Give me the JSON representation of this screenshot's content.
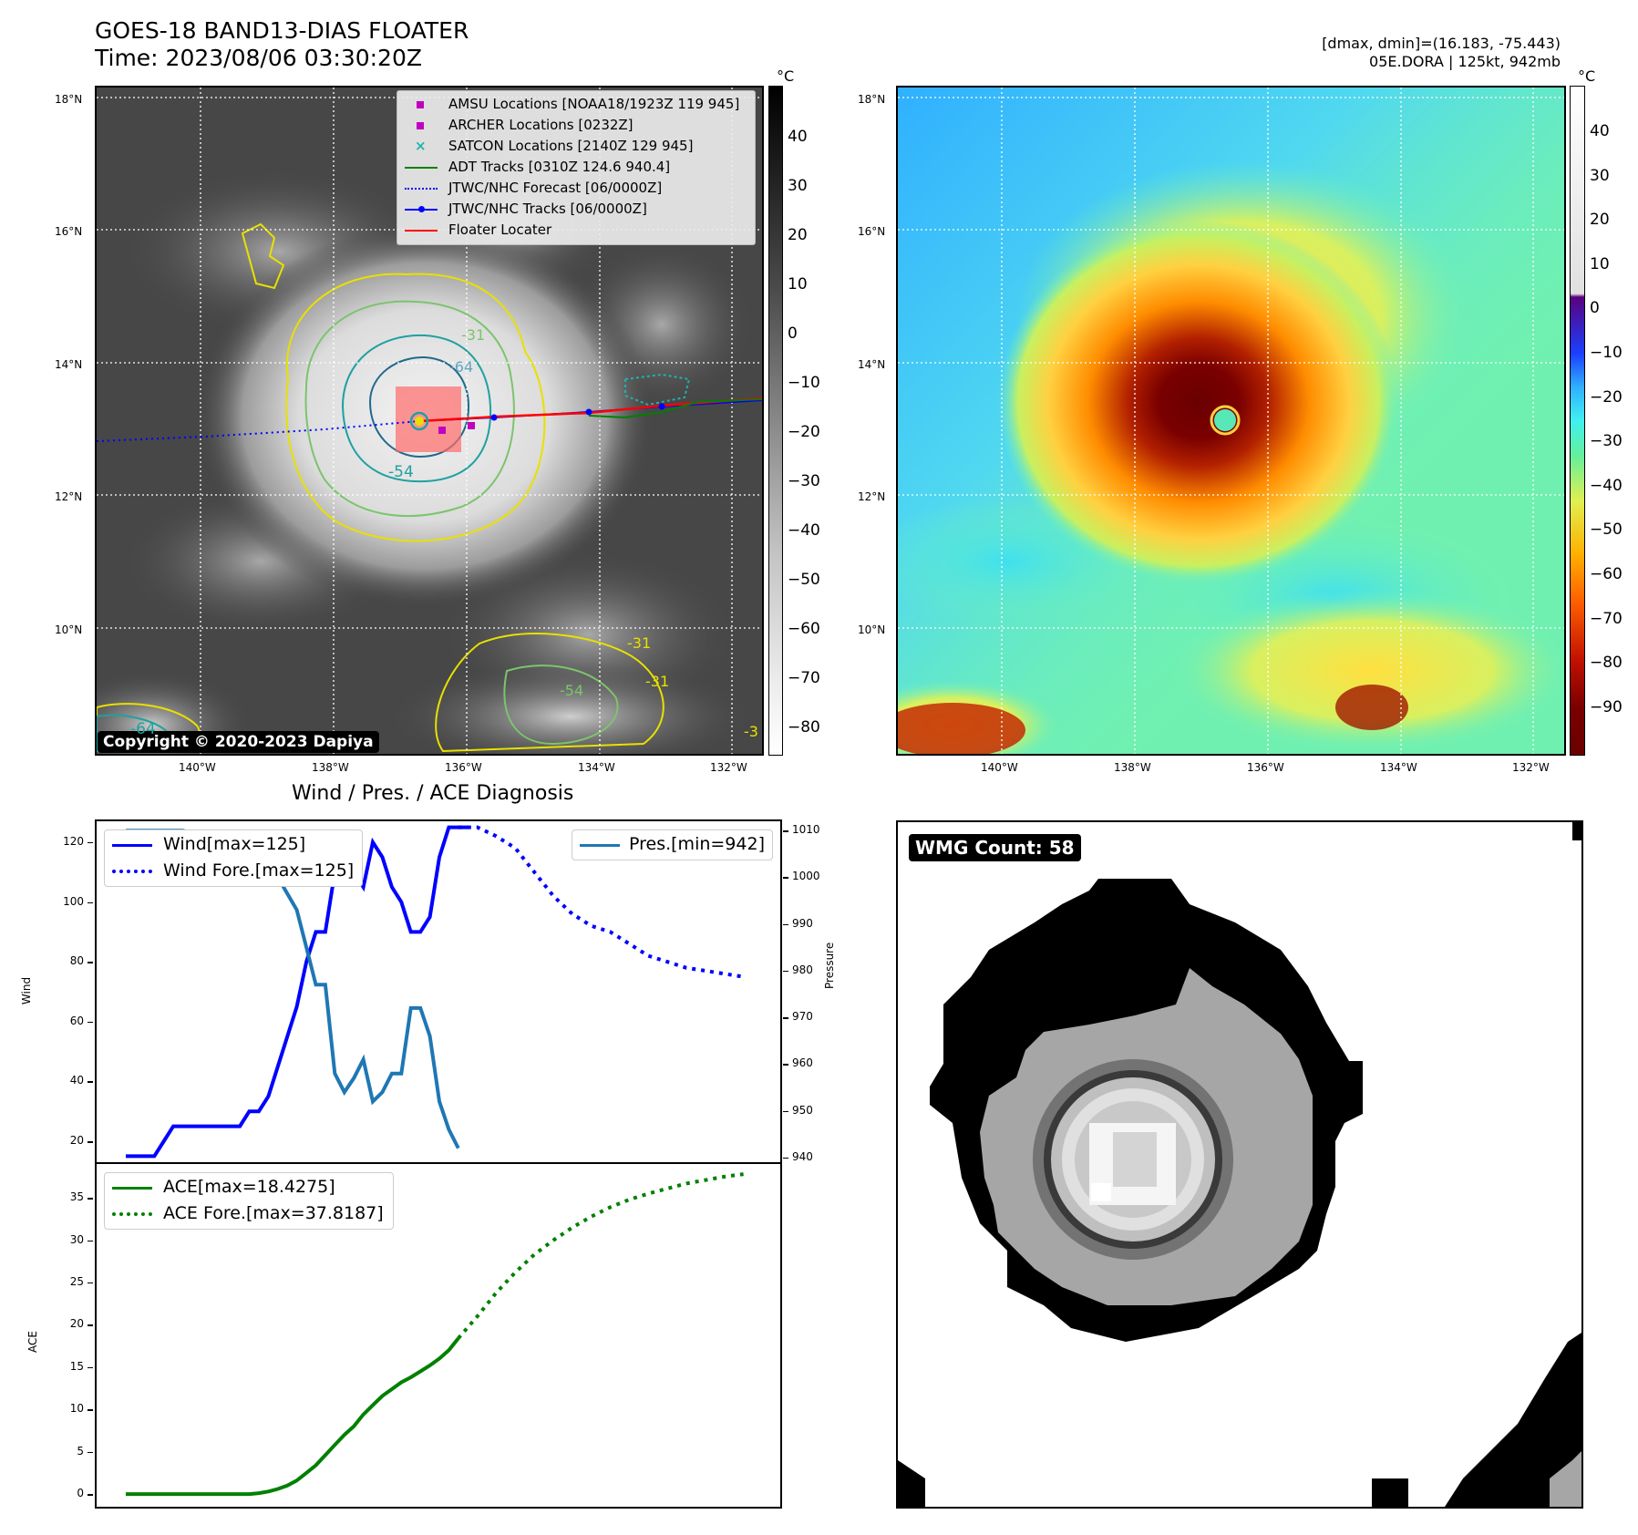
{
  "header": {
    "title_line1": "GOES-18 BAND13-DIAS FLOATER",
    "title_line2": "Time: 2023/08/06 03:30:20Z",
    "right_line1": "[dmax, dmin]=(16.183, -75.443)",
    "right_line2": "05E.DORA | 125kt, 942mb"
  },
  "map": {
    "lat_labels": [
      "18°N",
      "16°N",
      "14°N",
      "12°N",
      "10°N"
    ],
    "lon_labels": [
      "140°W",
      "138°W",
      "136°W",
      "134°W",
      "132°W"
    ],
    "legend": [
      {
        "label": "AMSU Locations [NOAA18/1923Z 119 945]",
        "symbol": "square",
        "color": "#c000c0"
      },
      {
        "label": "ARCHER Locations [0232Z]",
        "symbol": "square",
        "color": "#c000c0"
      },
      {
        "label": "SATCON Locations [2140Z 129 945]",
        "symbol": "x",
        "color": "#20b2aa"
      },
      {
        "label": "ADT Tracks [0310Z 124.6 940.4]",
        "symbol": "line",
        "color": "#008000"
      },
      {
        "label": "JTWC/NHC Forecast [06/0000Z]",
        "symbol": "dotted",
        "color": "#0000ff"
      },
      {
        "label": "JTWC/NHC Tracks [06/0000Z]",
        "symbol": "line-dot",
        "color": "#0000ff"
      },
      {
        "label": "Floater Locater",
        "symbol": "line",
        "color": "#ff0000"
      }
    ],
    "copyright": "Copyright © 2020-2023 Dapiya",
    "contour_labels": [
      "-31",
      "-64",
      "-54",
      "-31",
      "-64",
      "-31",
      "-54",
      "-3"
    ]
  },
  "colorbar_ir": {
    "unit": "°C",
    "ticks": [
      "40",
      "30",
      "20",
      "10",
      "0",
      "−10",
      "−20",
      "−30",
      "−40",
      "−50",
      "−60",
      "−70",
      "−80"
    ]
  },
  "colorbar_color": {
    "unit": "°C",
    "ticks": [
      "40",
      "30",
      "20",
      "10",
      "0",
      "−10",
      "−20",
      "−30",
      "−40",
      "−50",
      "−60",
      "−70",
      "−80",
      "−90"
    ]
  },
  "diag": {
    "title": "Wind / Pres. / ACE Diagnosis",
    "wind_ylabel": "Wind",
    "pres_ylabel": "Pressure",
    "ace_ylabel": "ACE",
    "wind_ticks": [
      "120",
      "100",
      "80",
      "60",
      "40",
      "20"
    ],
    "pres_ticks": [
      "1010",
      "1000",
      "990",
      "980",
      "970",
      "960",
      "950",
      "940"
    ],
    "ace_ticks": [
      "35",
      "30",
      "25",
      "20",
      "15",
      "10",
      "5",
      "0"
    ],
    "legend_wind": [
      "Wind[max=125]",
      "Wind Fore.[max=125]"
    ],
    "legend_pres": "Pres.[min=942]",
    "legend_ace": [
      "ACE[max=18.4275]",
      "ACE Fore.[max=37.8187]"
    ]
  },
  "wmg": {
    "label": "WMG Count: 58"
  },
  "chart_data": [
    {
      "type": "line",
      "title": "Wind / Pres. / ACE Diagnosis",
      "ylabel": "Wind",
      "ylim": [
        13,
        127
      ],
      "series": [
        {
          "name": "Wind[max=125]",
          "color": "#0000ff",
          "style": "solid",
          "x": [
            0,
            1,
            2,
            3,
            4,
            5,
            6,
            7,
            8,
            9,
            10,
            11,
            12,
            13,
            14,
            15,
            16,
            17,
            18,
            19,
            20,
            21,
            22,
            23,
            24,
            25,
            26,
            27,
            28,
            29,
            30,
            31,
            32,
            33,
            34,
            35,
            36
          ],
          "values": [
            15,
            15,
            15,
            15,
            20,
            25,
            25,
            25,
            25,
            25,
            25,
            25,
            25,
            30,
            30,
            35,
            45,
            55,
            65,
            80,
            90,
            90,
            110,
            115,
            110,
            105,
            120,
            115,
            105,
            100,
            90,
            90,
            95,
            115,
            125,
            125,
            125
          ]
        },
        {
          "name": "Wind Fore.[max=125]",
          "color": "#0000ff",
          "style": "dotted",
          "x": [
            35,
            37,
            39,
            41,
            43,
            45,
            47,
            49,
            51,
            53,
            55,
            57,
            59,
            61,
            63,
            65
          ],
          "values": [
            125,
            125,
            122,
            118,
            110,
            102,
            96,
            92,
            90,
            86,
            82,
            80,
            78,
            77,
            76,
            75
          ]
        }
      ]
    },
    {
      "type": "line",
      "ylabel": "Pressure",
      "ylim": [
        939,
        1012
      ],
      "series": [
        {
          "name": "Pres.[min=942]",
          "color": "#1f77b4",
          "style": "solid",
          "x": [
            0,
            2,
            4,
            6,
            8,
            10,
            12,
            14,
            16,
            18,
            19,
            20,
            21,
            22,
            23,
            24,
            25,
            26,
            27,
            28,
            29,
            30,
            31,
            32,
            33,
            34,
            35
          ],
          "values": [
            1010,
            1010,
            1010,
            1010,
            1009,
            1009,
            1008,
            1006,
            1000,
            993,
            985,
            977,
            977,
            958,
            954,
            957,
            961,
            952,
            954,
            958,
            958,
            972,
            972,
            966,
            952,
            946,
            942
          ]
        }
      ]
    },
    {
      "type": "line",
      "ylabel": "ACE",
      "ylim": [
        -1.5,
        39
      ],
      "series": [
        {
          "name": "ACE[max=18.4275]",
          "color": "#008000",
          "style": "solid",
          "x": [
            0,
            5,
            10,
            13,
            14,
            15,
            16,
            17,
            18,
            19,
            20,
            21,
            22,
            23,
            24,
            25,
            26,
            27,
            28,
            29,
            30,
            31,
            32,
            33,
            34,
            35
          ],
          "values": [
            0,
            0,
            0,
            0,
            0.1,
            0.3,
            0.6,
            1,
            1.6,
            2.5,
            3.4,
            4.6,
            5.8,
            7,
            8,
            9.4,
            10.5,
            11.6,
            12.4,
            13.2,
            13.8,
            14.5,
            15.2,
            16,
            17,
            18.4
          ]
        },
        {
          "name": "ACE Fore.[max=37.8187]",
          "color": "#008000",
          "style": "dotted",
          "x": [
            35,
            37,
            39,
            41,
            43,
            45,
            47,
            49,
            51,
            53,
            55,
            57,
            59,
            61,
            63,
            65
          ],
          "values": [
            18.4,
            21,
            23.8,
            26.2,
            28.3,
            30,
            31.5,
            32.8,
            33.9,
            34.8,
            35.5,
            36.1,
            36.7,
            37.1,
            37.5,
            37.8
          ]
        }
      ]
    }
  ]
}
